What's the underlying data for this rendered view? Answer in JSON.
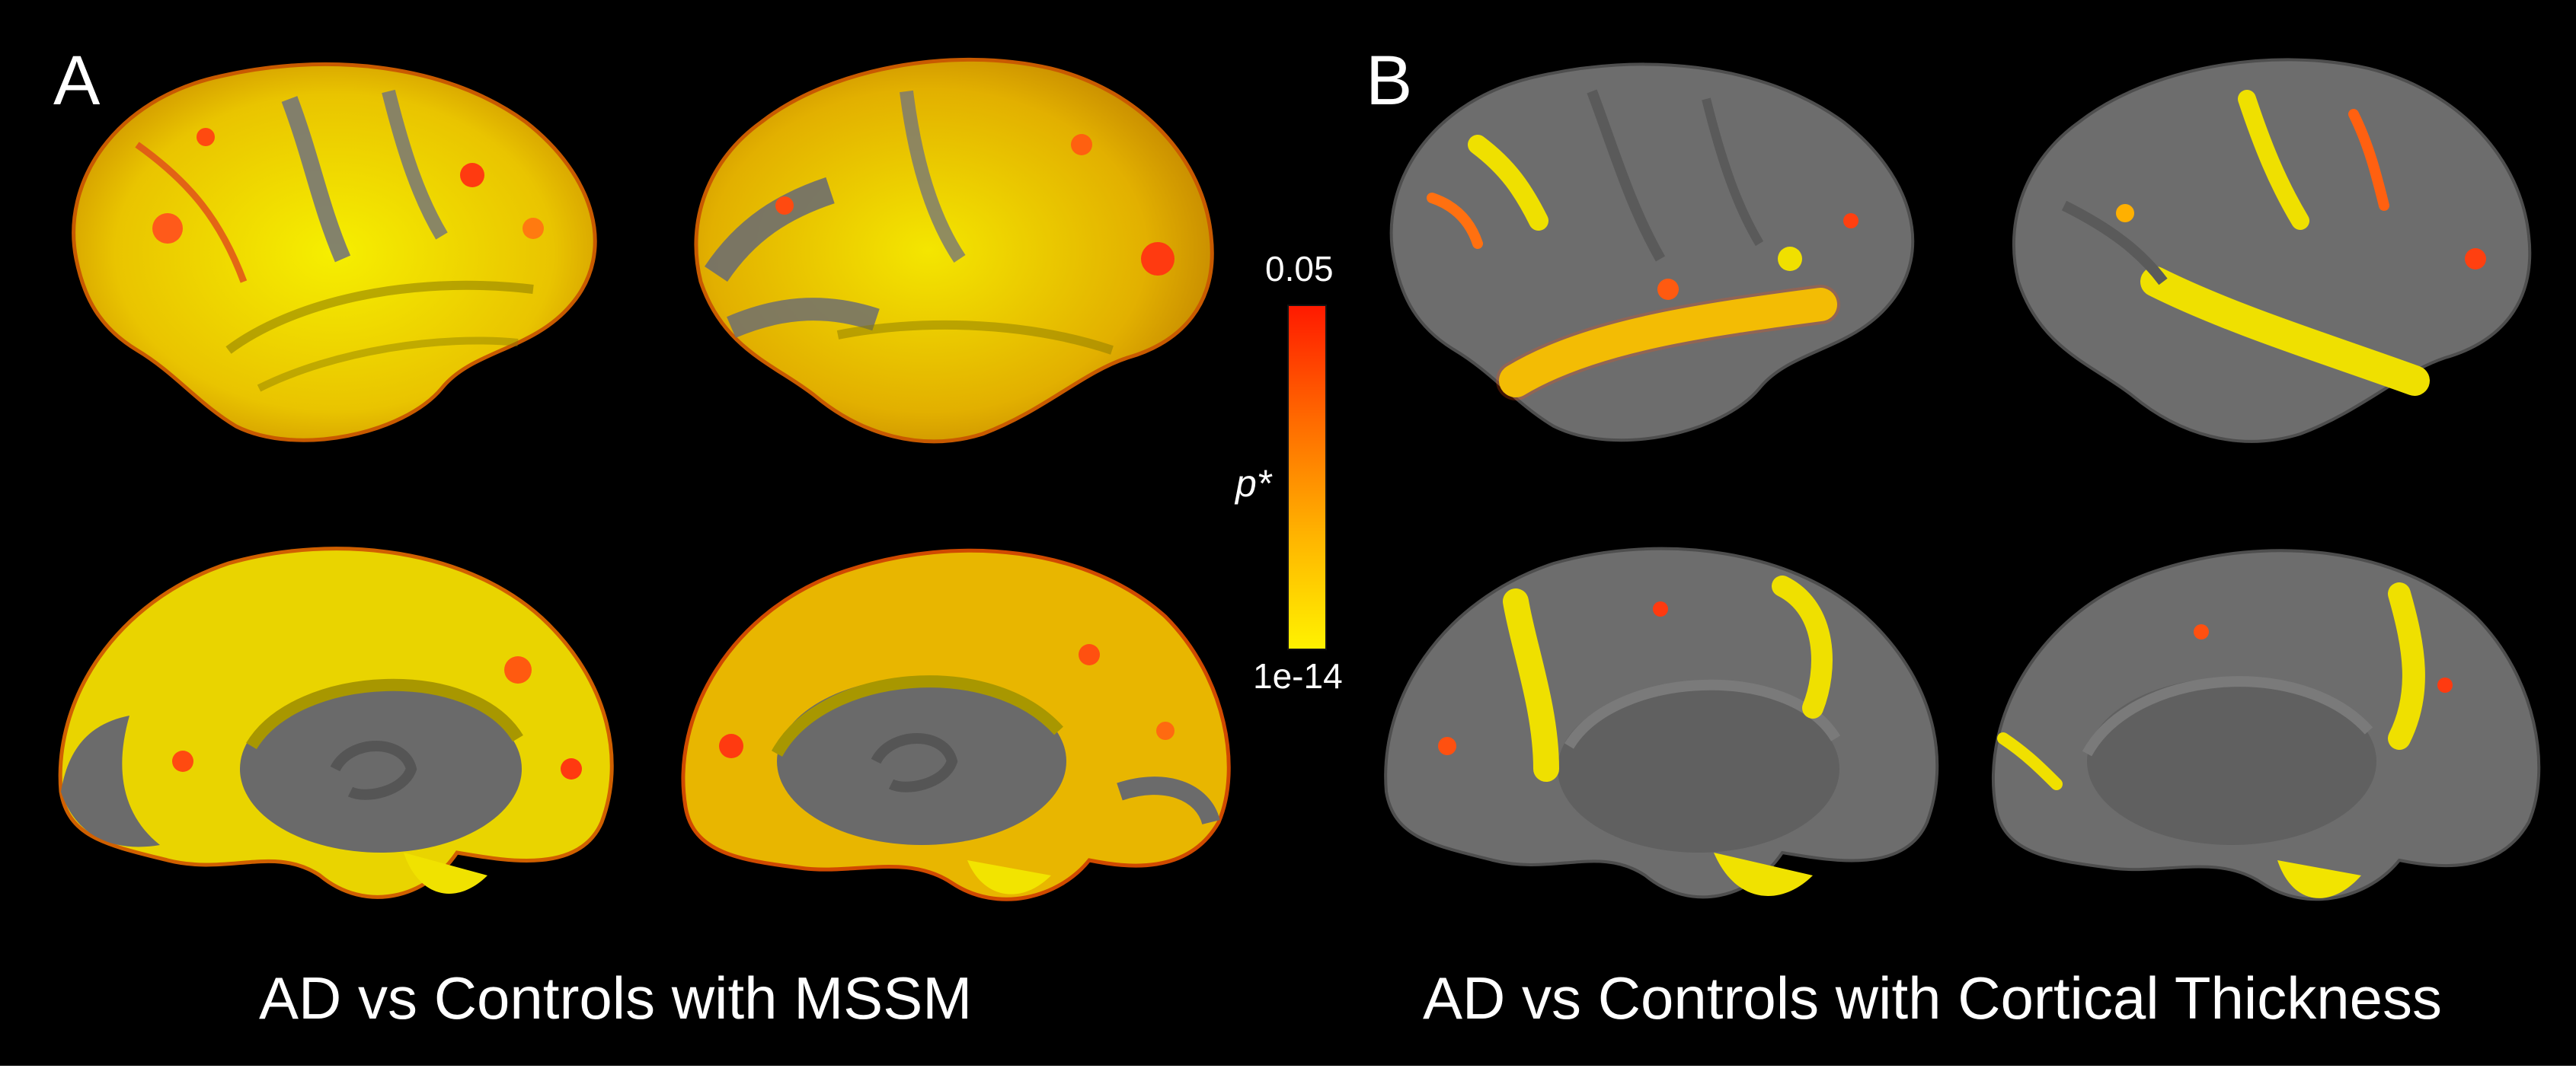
{
  "panels": {
    "a": {
      "letter": "A",
      "caption": "AD vs Controls with MSSM"
    },
    "b": {
      "letter": "B",
      "caption": "AD vs Controls with Cortical Thickness"
    }
  },
  "colorbar": {
    "title": "p*",
    "max_label": "0.05",
    "min_label": "1e-14",
    "colors": [
      "#ff1a00",
      "#ff6a00",
      "#ffb300",
      "#fff200"
    ]
  },
  "colors": {
    "background": "#000000",
    "cortex": "#6b6b6b",
    "highlight_strong": "#f4e600",
    "highlight_mid": "#ffa000",
    "highlight_edge": "#e83a10"
  }
}
